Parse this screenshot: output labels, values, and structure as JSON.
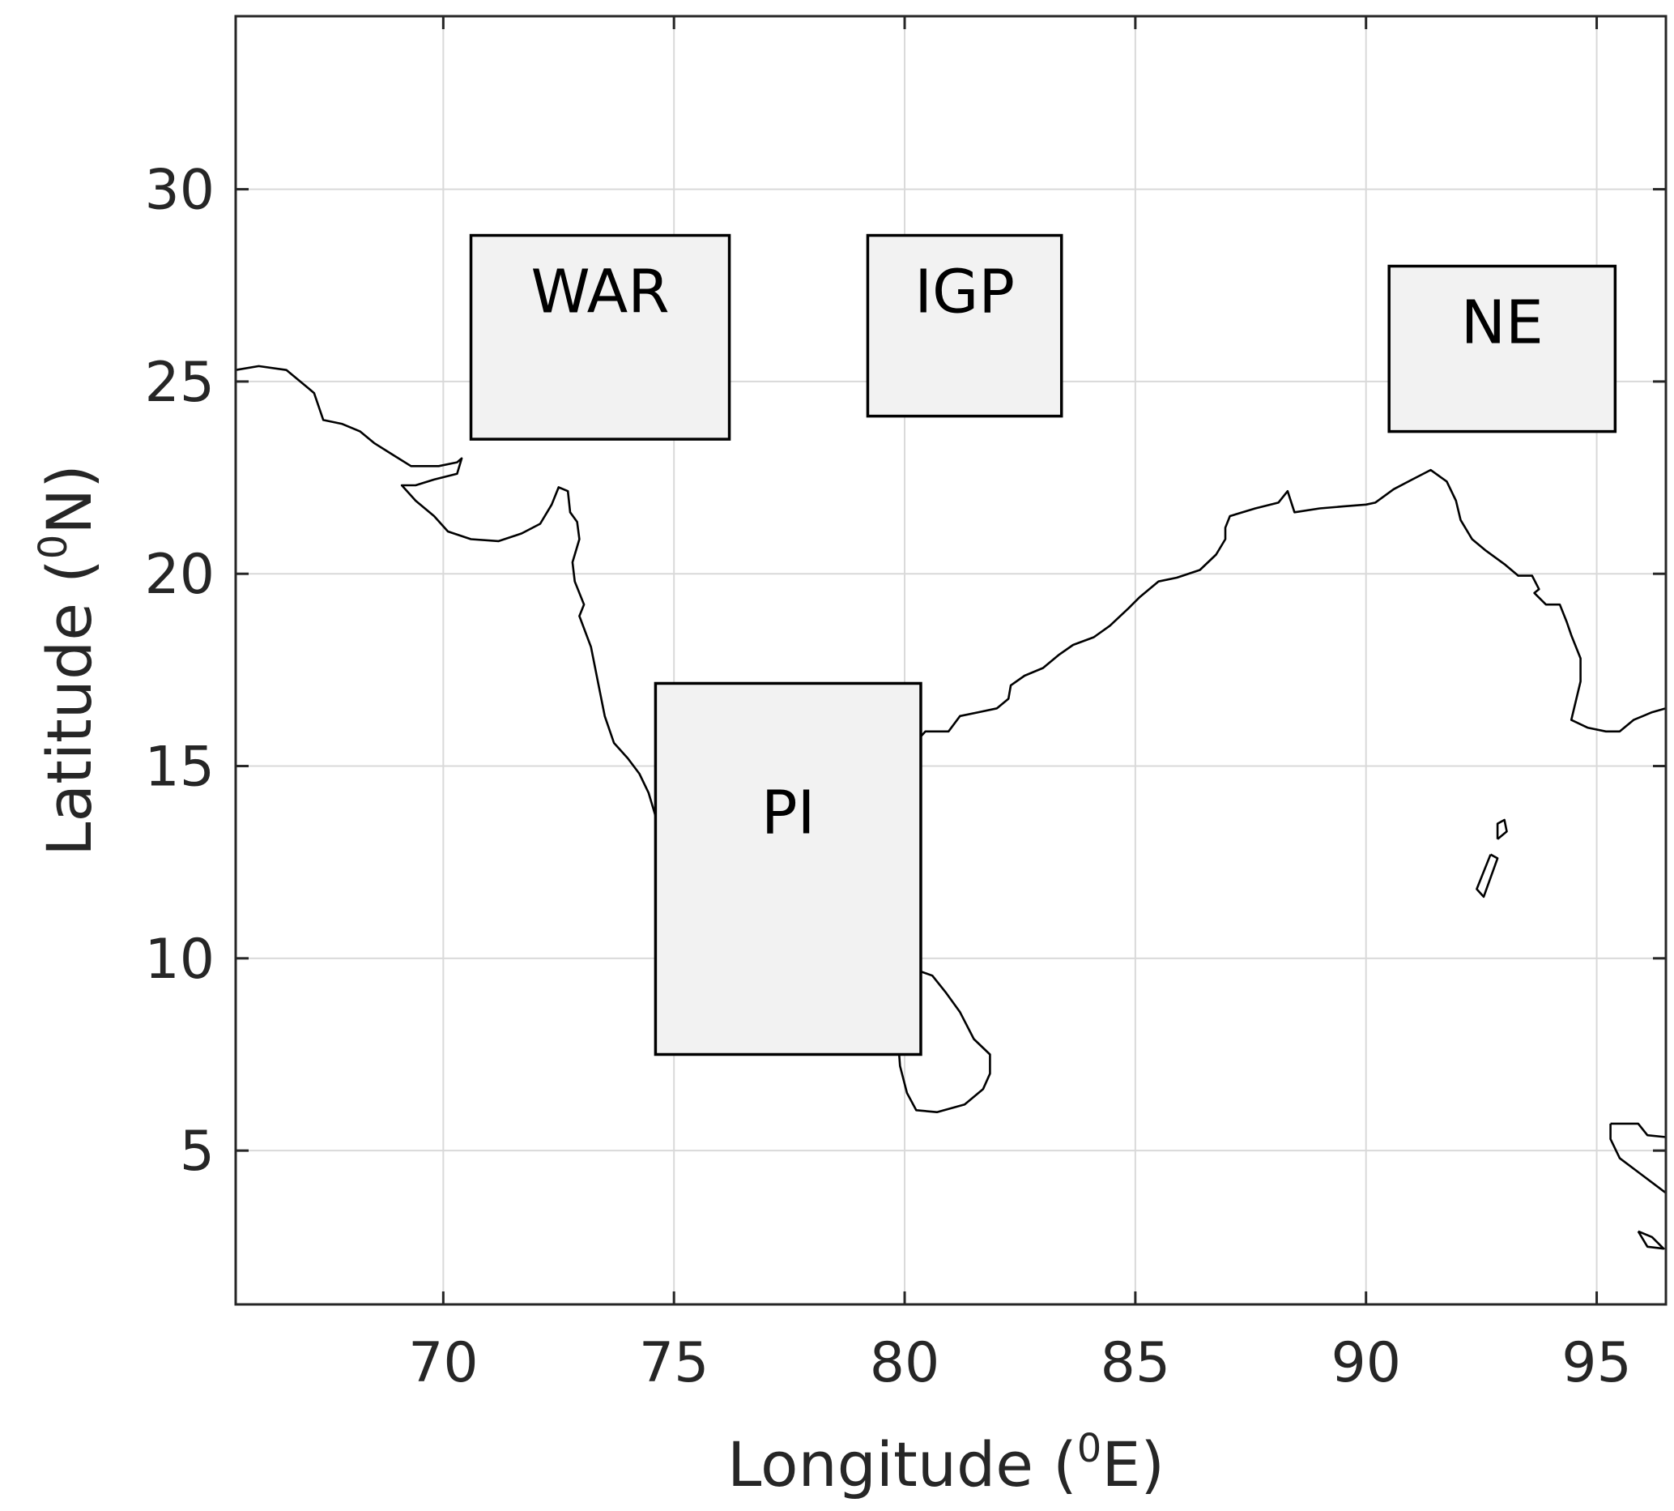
{
  "chart_data": {
    "type": "map",
    "xlabel": "Longitude (",
    "xlabel_sup": "0",
    "xlabel_tail": "E)",
    "ylabel": "Latitude (",
    "ylabel_sup": "0",
    "ylabel_tail": "N)",
    "xlim": [
      65.5,
      96.5
    ],
    "ylim": [
      1,
      34.5
    ],
    "grid": true,
    "x_ticks": [
      70,
      75,
      80,
      85,
      90,
      95
    ],
    "x_tick_labels": [
      "70",
      "75",
      "80",
      "85",
      "90",
      "95"
    ],
    "y_ticks": [
      5,
      10,
      15,
      20,
      25,
      30
    ],
    "y_tick_labels": [
      "5",
      "10",
      "15",
      "20",
      "25",
      "30"
    ],
    "regions": [
      {
        "label": "WAR",
        "lon": [
          70.6,
          76.2
        ],
        "lat": [
          23.5,
          28.8
        ]
      },
      {
        "label": "IGP",
        "lon": [
          79.2,
          83.4
        ],
        "lat": [
          24.1,
          28.8
        ]
      },
      {
        "label": "NE",
        "lon": [
          90.5,
          95.4
        ],
        "lat": [
          23.7,
          28.0
        ]
      },
      {
        "label": "PI",
        "lon": [
          74.6,
          80.35
        ],
        "lat": [
          7.5,
          17.15
        ]
      }
    ],
    "coastlines": [
      {
        "name": "india-mainland",
        "points": [
          [
            65.5,
            25.3
          ],
          [
            66.0,
            25.4
          ],
          [
            66.6,
            25.3
          ],
          [
            67.0,
            24.9
          ],
          [
            67.2,
            24.7
          ],
          [
            67.4,
            24.0
          ],
          [
            67.8,
            23.9
          ],
          [
            68.2,
            23.7
          ],
          [
            68.5,
            23.4
          ],
          [
            68.9,
            23.1
          ],
          [
            69.3,
            22.8
          ],
          [
            69.9,
            22.8
          ],
          [
            70.3,
            22.9
          ],
          [
            70.4,
            23.0
          ],
          [
            70.3,
            22.6
          ],
          [
            69.8,
            22.45
          ],
          [
            69.4,
            22.3
          ],
          [
            69.1,
            22.3
          ],
          [
            69.4,
            21.9
          ],
          [
            69.8,
            21.5
          ],
          [
            70.1,
            21.1
          ],
          [
            70.6,
            20.9
          ],
          [
            71.2,
            20.85
          ],
          [
            71.7,
            21.05
          ],
          [
            72.1,
            21.3
          ],
          [
            72.35,
            21.8
          ],
          [
            72.5,
            22.25
          ],
          [
            72.7,
            22.15
          ],
          [
            72.75,
            21.6
          ],
          [
            72.9,
            21.35
          ],
          [
            72.95,
            20.9
          ],
          [
            72.8,
            20.3
          ],
          [
            72.85,
            19.8
          ],
          [
            73.05,
            19.2
          ],
          [
            72.95,
            18.9
          ],
          [
            73.2,
            18.1
          ],
          [
            73.35,
            17.2
          ],
          [
            73.5,
            16.3
          ],
          [
            73.7,
            15.6
          ],
          [
            74.0,
            15.2
          ],
          [
            74.25,
            14.8
          ],
          [
            74.45,
            14.3
          ],
          [
            74.6,
            13.7
          ],
          [
            74.8,
            13.0
          ],
          [
            75.0,
            12.4
          ],
          [
            75.3,
            11.8
          ],
          [
            75.65,
            11.3
          ],
          [
            75.9,
            10.8
          ],
          [
            76.15,
            10.1
          ],
          [
            76.4,
            9.2
          ],
          [
            76.7,
            8.7
          ],
          [
            77.1,
            8.35
          ],
          [
            77.5,
            8.1
          ],
          [
            77.8,
            8.3
          ],
          [
            78.0,
            8.8
          ],
          [
            78.4,
            9.1
          ],
          [
            78.7,
            9.15
          ],
          [
            79.2,
            9.3
          ],
          [
            79.3,
            9.8
          ],
          [
            79.6,
            10.3
          ],
          [
            79.85,
            10.3
          ],
          [
            79.85,
            10.8
          ],
          [
            79.8,
            11.5
          ],
          [
            79.8,
            11.9
          ],
          [
            80.05,
            12.2
          ],
          [
            80.3,
            12.9
          ],
          [
            80.3,
            13.6
          ],
          [
            80.2,
            14.6
          ],
          [
            80.1,
            15.2
          ],
          [
            80.3,
            15.7
          ],
          [
            80.45,
            15.9
          ],
          [
            80.95,
            15.9
          ],
          [
            81.2,
            16.3
          ],
          [
            81.6,
            16.4
          ],
          [
            82.0,
            16.5
          ],
          [
            82.25,
            16.75
          ],
          [
            82.3,
            17.1
          ],
          [
            82.6,
            17.35
          ],
          [
            83.0,
            17.55
          ],
          [
            83.35,
            17.9
          ],
          [
            83.65,
            18.15
          ],
          [
            84.1,
            18.35
          ],
          [
            84.45,
            18.65
          ],
          [
            84.85,
            19.1
          ],
          [
            85.1,
            19.4
          ],
          [
            85.5,
            19.8
          ],
          [
            85.9,
            19.9
          ],
          [
            86.4,
            20.1
          ],
          [
            86.75,
            20.5
          ],
          [
            86.95,
            20.9
          ],
          [
            86.95,
            21.2
          ],
          [
            87.05,
            21.5
          ],
          [
            87.6,
            21.7
          ],
          [
            88.1,
            21.85
          ],
          [
            88.3,
            22.15
          ],
          [
            88.45,
            21.6
          ],
          [
            89.0,
            21.7
          ],
          [
            89.5,
            21.75
          ],
          [
            90.0,
            21.8
          ],
          [
            90.2,
            21.85
          ],
          [
            90.6,
            22.2
          ],
          [
            91.0,
            22.45
          ],
          [
            91.4,
            22.7
          ],
          [
            91.75,
            22.4
          ],
          [
            91.95,
            21.9
          ],
          [
            92.05,
            21.4
          ],
          [
            92.3,
            20.9
          ],
          [
            92.6,
            20.6
          ],
          [
            93.0,
            20.25
          ],
          [
            93.3,
            19.95
          ],
          [
            93.6,
            19.95
          ],
          [
            93.75,
            19.6
          ],
          [
            93.65,
            19.5
          ],
          [
            93.9,
            19.2
          ],
          [
            94.2,
            19.2
          ],
          [
            94.35,
            18.75
          ],
          [
            94.45,
            18.4
          ],
          [
            94.65,
            17.8
          ],
          [
            94.65,
            17.2
          ],
          [
            94.45,
            16.2
          ],
          [
            94.8,
            16.0
          ],
          [
            95.2,
            15.9
          ],
          [
            95.5,
            15.9
          ],
          [
            95.8,
            16.2
          ],
          [
            96.2,
            16.4
          ],
          [
            96.5,
            16.5
          ]
        ]
      },
      {
        "name": "sri-lanka",
        "points": [
          [
            80.0,
            9.8
          ],
          [
            80.25,
            9.7
          ],
          [
            80.6,
            9.55
          ],
          [
            80.9,
            9.1
          ],
          [
            81.2,
            8.6
          ],
          [
            81.5,
            7.9
          ],
          [
            81.85,
            7.5
          ],
          [
            81.85,
            7.0
          ],
          [
            81.7,
            6.6
          ],
          [
            81.3,
            6.2
          ],
          [
            80.7,
            6.0
          ],
          [
            80.25,
            6.05
          ],
          [
            80.05,
            6.5
          ],
          [
            79.9,
            7.2
          ],
          [
            79.85,
            8.0
          ],
          [
            79.95,
            8.7
          ],
          [
            80.15,
            9.2
          ],
          [
            80.1,
            9.55
          ],
          [
            80.0,
            9.8
          ]
        ]
      },
      {
        "name": "andaman-north",
        "points": [
          [
            92.85,
            13.1
          ],
          [
            93.05,
            13.3
          ],
          [
            93.0,
            13.6
          ],
          [
            92.85,
            13.5
          ],
          [
            92.85,
            13.1
          ]
        ]
      },
      {
        "name": "andaman-middle",
        "points": [
          [
            92.7,
            12.7
          ],
          [
            92.85,
            12.6
          ],
          [
            92.55,
            11.6
          ],
          [
            92.4,
            11.8
          ],
          [
            92.7,
            12.7
          ]
        ]
      },
      {
        "name": "sumatra-tip",
        "points": [
          [
            95.3,
            5.7
          ],
          [
            95.9,
            5.7
          ],
          [
            96.1,
            5.4
          ],
          [
            96.5,
            5.35
          ],
          [
            96.5,
            3.9
          ],
          [
            96.0,
            4.35
          ],
          [
            95.5,
            4.8
          ],
          [
            95.3,
            5.3
          ],
          [
            95.3,
            5.7
          ]
        ]
      },
      {
        "name": "simeulue",
        "points": [
          [
            95.9,
            2.9
          ],
          [
            96.2,
            2.75
          ],
          [
            96.45,
            2.45
          ],
          [
            96.1,
            2.5
          ],
          [
            95.9,
            2.9
          ]
        ]
      }
    ]
  }
}
